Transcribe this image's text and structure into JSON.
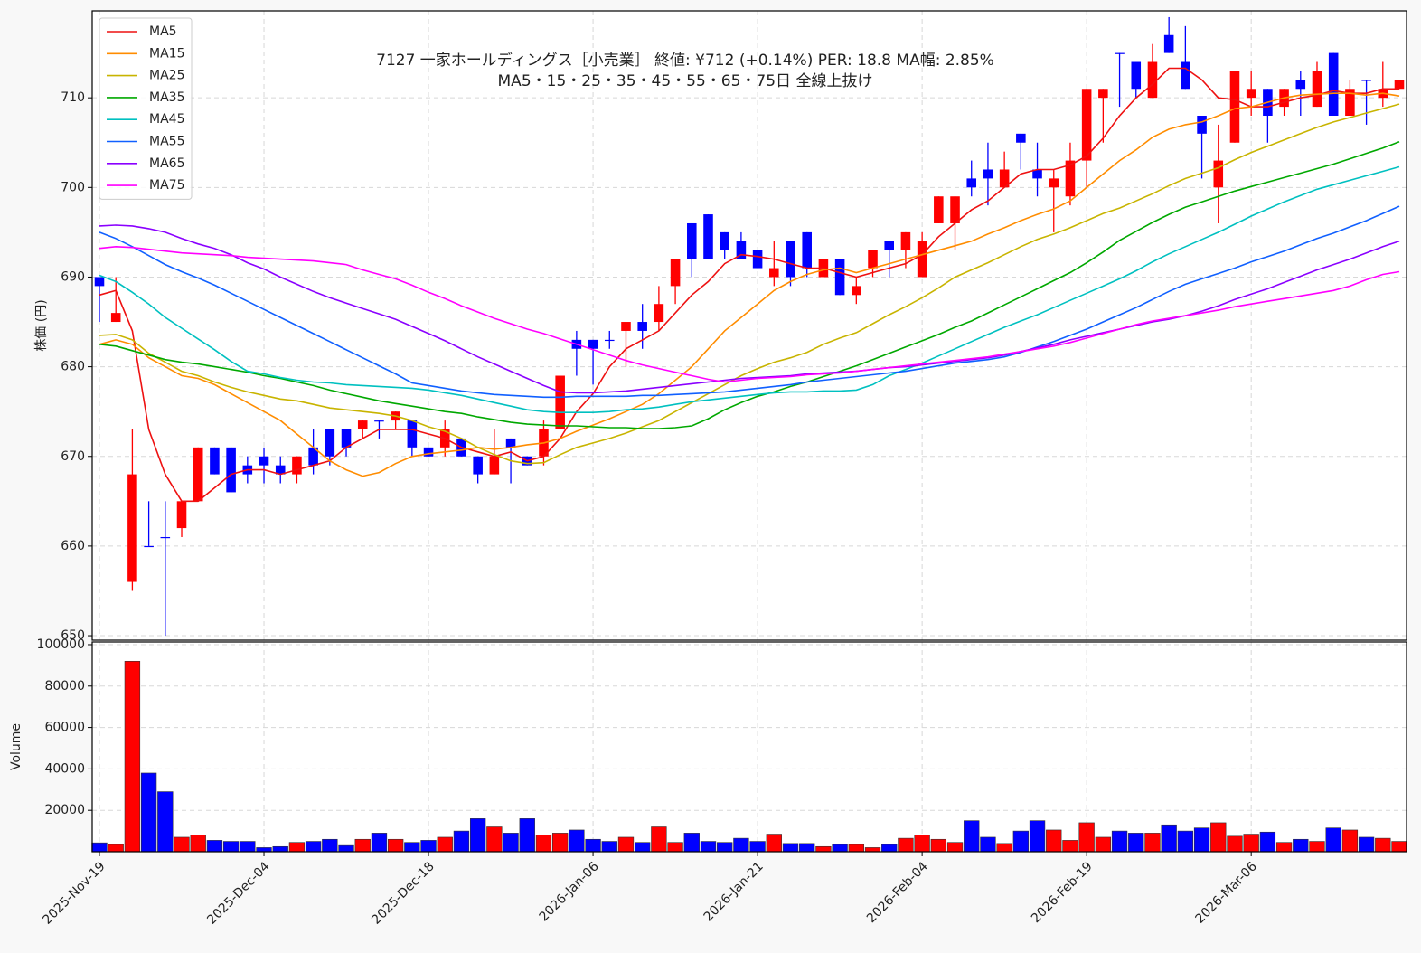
{
  "chart_data": {
    "type": "candlestick",
    "title": "7127  一家ホールディングス［小売業］ 終値: ¥712 (+0.14%)  PER: 18.8  MA幅: 2.85%",
    "subtitle": "MA5・15・25・35・45・55・65・75日 全線上抜け",
    "y_label": "株価 (円)",
    "up_color": "#ff0000",
    "down_color": "#0000ff",
    "grid": true,
    "legend": "upper left",
    "ylim": [
      649.5,
      719.7
    ],
    "yticks": [
      650,
      660,
      670,
      680,
      690,
      700,
      710
    ],
    "categories": [
      "2025-Nov-19",
      null,
      null,
      null,
      null,
      null,
      null,
      null,
      null,
      null,
      "2025-Dec-04",
      null,
      null,
      null,
      null,
      null,
      null,
      null,
      null,
      null,
      "2025-Dec-18",
      null,
      null,
      null,
      null,
      null,
      null,
      null,
      null,
      null,
      "2026-Jan-06",
      null,
      null,
      null,
      null,
      null,
      null,
      null,
      null,
      null,
      "2026-Jan-21",
      null,
      null,
      null,
      null,
      null,
      null,
      null,
      null,
      null,
      "2026-Feb-04",
      null,
      null,
      null,
      null,
      null,
      null,
      null,
      null,
      null,
      "2026-Feb-19",
      null,
      null,
      null,
      null,
      null,
      null,
      null,
      null,
      null,
      "2026-Mar-06",
      null,
      null,
      null,
      null,
      null,
      null,
      null,
      null,
      null
    ],
    "open": [
      690,
      685,
      656,
      660,
      661,
      662,
      665,
      671,
      671,
      669,
      670,
      669,
      668,
      671,
      673,
      673,
      673,
      674,
      674,
      674,
      671,
      671,
      672,
      670,
      668,
      672,
      670,
      670,
      673,
      683,
      683,
      683,
      684,
      685,
      685,
      689,
      696,
      697,
      695,
      694,
      693,
      690,
      694,
      695,
      690,
      692,
      688,
      691,
      694,
      693,
      690,
      696,
      696,
      701,
      702,
      700,
      706,
      702,
      700,
      699,
      703,
      710,
      715,
      714,
      710,
      717,
      714,
      708,
      700,
      705,
      710,
      711,
      709,
      712,
      709,
      715,
      708,
      712,
      710,
      711
    ],
    "high": [
      690,
      690,
      673,
      665,
      665,
      665,
      671,
      671,
      671,
      670,
      671,
      670,
      670,
      673,
      673,
      673,
      674,
      674,
      675,
      674,
      671,
      674,
      672,
      670,
      673,
      672,
      670,
      674,
      679,
      684,
      683,
      684,
      685,
      687,
      689,
      692,
      696,
      697,
      695,
      695,
      693,
      694,
      694,
      695,
      692,
      692,
      690,
      693,
      694,
      695,
      695,
      699,
      699,
      703,
      705,
      704,
      706,
      705,
      702,
      705,
      711,
      711,
      715,
      714,
      716,
      719,
      718,
      708,
      707,
      713,
      713,
      711,
      711,
      713,
      714,
      715,
      712,
      712,
      714,
      712
    ],
    "low": [
      685,
      685,
      655,
      660,
      650,
      661,
      665,
      668,
      666,
      667,
      667,
      667,
      667,
      668,
      669,
      670,
      672,
      672,
      673,
      670,
      670,
      670,
      670,
      667,
      668,
      667,
      669,
      669,
      673,
      679,
      678,
      682,
      680,
      682,
      684,
      687,
      690,
      692,
      692,
      692,
      691,
      689,
      689,
      690,
      690,
      688,
      687,
      690,
      690,
      691,
      690,
      696,
      693,
      699,
      698,
      700,
      702,
      699,
      695,
      698,
      700,
      705,
      709,
      710,
      710,
      715,
      711,
      701,
      696,
      705,
      708,
      705,
      708,
      708,
      709,
      708,
      708,
      707,
      709,
      711
    ],
    "close": [
      689,
      686,
      668,
      660,
      661,
      665,
      671,
      668,
      666,
      668,
      669,
      668,
      670,
      669,
      670,
      671,
      674,
      674,
      675,
      671,
      670,
      673,
      670,
      668,
      670,
      671,
      669,
      673,
      679,
      682,
      682,
      683,
      685,
      684,
      687,
      692,
      692,
      692,
      693,
      692,
      691,
      691,
      690,
      691,
      692,
      688,
      689,
      693,
      693,
      695,
      694,
      699,
      699,
      700,
      701,
      702,
      705,
      701,
      701,
      703,
      711,
      711,
      715,
      711,
      714,
      715,
      711,
      706,
      703,
      713,
      711,
      708,
      711,
      711,
      713,
      708,
      711,
      712,
      711,
      712
    ],
    "series": [
      {
        "name": "MA5",
        "color": "#ee1111",
        "values": [
          688,
          688.5,
          684,
          673,
          668,
          665,
          665,
          666.5,
          668,
          668.5,
          668.5,
          668,
          668.5,
          669,
          669.5,
          671,
          672,
          673,
          673,
          673,
          672.5,
          672,
          671,
          670.5,
          670,
          670.5,
          669.5,
          670,
          672,
          675,
          677,
          680,
          682,
          683,
          684,
          686,
          688,
          689.5,
          691.5,
          692.5,
          692.3,
          692,
          691.5,
          691,
          691,
          690.5,
          690,
          690.5,
          691,
          691.5,
          692.5,
          694.5,
          696,
          697.5,
          698.5,
          700,
          701.5,
          702,
          702,
          702.5,
          703.5,
          705.5,
          708,
          710,
          711.5,
          713.3,
          713.3,
          712,
          710,
          709.8,
          709,
          709,
          709.5,
          710,
          710.3,
          710.8,
          710.5,
          710.5,
          711,
          711
        ]
      },
      {
        "name": "MA15",
        "color": "#ff8c00",
        "values": [
          682.5,
          683,
          682.5,
          681,
          680,
          679,
          678.7,
          678,
          677,
          676,
          675,
          674,
          672.5,
          671,
          669.5,
          668.5,
          667.8,
          668.2,
          669.2,
          670,
          670.3,
          670.5,
          670.7,
          671,
          670.8,
          671,
          671.3,
          671.5,
          672,
          672.8,
          673.5,
          674.2,
          675,
          675.8,
          677,
          678.5,
          680,
          682,
          684,
          685.5,
          687,
          688.5,
          689.5,
          690.3,
          690.8,
          691,
          690.5,
          691,
          691.5,
          692,
          692.5,
          693,
          693.5,
          694,
          694.8,
          695.5,
          696.3,
          697,
          697.6,
          698.5,
          700,
          701.5,
          703,
          704.2,
          705.6,
          706.5,
          707,
          707.3,
          708,
          708.8,
          709,
          709.5,
          710,
          710.3,
          710.4,
          710.5,
          710.5,
          710.3,
          710.5,
          710.2
        ]
      },
      {
        "name": "MA25",
        "color": "#c8b400",
        "values": [
          683.5,
          683.6,
          683,
          681.5,
          680.5,
          679.5,
          679,
          678.3,
          677.7,
          677.2,
          676.8,
          676.4,
          676.2,
          675.8,
          675.4,
          675.2,
          675,
          674.8,
          674.5,
          674,
          673.3,
          672.8,
          672,
          671,
          670.2,
          669.5,
          669.2,
          669.3,
          670.2,
          671,
          671.5,
          672,
          672.6,
          673.3,
          674,
          675,
          676,
          677,
          678,
          679,
          679.8,
          680.5,
          681,
          681.6,
          682.5,
          683.2,
          683.8,
          684.8,
          685.8,
          686.7,
          687.7,
          688.8,
          690,
          690.8,
          691.6,
          692.5,
          693.4,
          694.2,
          694.8,
          695.5,
          696.3,
          697.1,
          697.7,
          698.5,
          699.3,
          700.2,
          701,
          701.6,
          702.2,
          703.1,
          703.9,
          704.6,
          705.3,
          706,
          706.7,
          707.3,
          707.8,
          708.3,
          708.8,
          709.3
        ]
      },
      {
        "name": "MA35",
        "color": "#00a800",
        "values": [
          682.5,
          682.3,
          681.8,
          681.3,
          680.8,
          680.5,
          680.3,
          680,
          679.7,
          679.4,
          679,
          678.7,
          678.3,
          677.9,
          677.4,
          677,
          676.6,
          676.2,
          675.9,
          675.6,
          675.3,
          675,
          674.8,
          674.4,
          674.1,
          673.8,
          673.6,
          673.5,
          673.4,
          673.4,
          673.3,
          673.2,
          673.2,
          673.1,
          673.1,
          673.2,
          673.4,
          674.2,
          675.2,
          676,
          676.7,
          677.2,
          677.8,
          678.3,
          678.9,
          679.5,
          680.1,
          680.8,
          681.5,
          682.2,
          682.9,
          683.6,
          684.4,
          685.1,
          686,
          686.9,
          687.8,
          688.7,
          689.6,
          690.5,
          691.6,
          692.8,
          694.1,
          695.1,
          696.1,
          697,
          697.8,
          698.4,
          699,
          699.6,
          700.1,
          700.6,
          701.1,
          701.6,
          702.1,
          702.6,
          703.2,
          703.8,
          704.4,
          705.1
        ]
      },
      {
        "name": "MA45",
        "color": "#00c0c0",
        "values": [
          690.2,
          689.5,
          688.3,
          687,
          685.5,
          684.3,
          683.1,
          681.9,
          680.6,
          679.5,
          679.2,
          678.8,
          678.5,
          678.3,
          678.2,
          678,
          677.9,
          677.8,
          677.7,
          677.6,
          677.4,
          677.1,
          676.8,
          676.4,
          676,
          675.6,
          675.2,
          675,
          674.9,
          674.9,
          674.9,
          675,
          675.2,
          675.3,
          675.5,
          675.8,
          676.1,
          676.3,
          676.5,
          676.7,
          676.9,
          677.1,
          677.2,
          677.2,
          677.3,
          677.3,
          677.4,
          678,
          679,
          679.7,
          680.4,
          681.2,
          682,
          682.8,
          683.6,
          684.4,
          685.1,
          685.8,
          686.6,
          687.4,
          688.2,
          689,
          689.8,
          690.7,
          691.7,
          692.6,
          693.4,
          694.2,
          695,
          695.9,
          696.8,
          697.6,
          698.4,
          699.1,
          699.8,
          700.3,
          700.8,
          701.3,
          701.8,
          702.3
        ]
      },
      {
        "name": "MA55",
        "color": "#1060ff",
        "values": [
          695,
          694.3,
          693.4,
          692.4,
          691.4,
          690.6,
          689.9,
          689.1,
          688.2,
          687.3,
          686.4,
          685.5,
          684.6,
          683.7,
          682.8,
          681.9,
          681,
          680.1,
          679.2,
          678.2,
          677.9,
          677.6,
          677.3,
          677.1,
          676.9,
          676.8,
          676.7,
          676.6,
          676.6,
          676.7,
          676.7,
          676.7,
          676.7,
          676.8,
          676.8,
          676.9,
          677,
          677.1,
          677.2,
          677.4,
          677.6,
          677.8,
          678,
          678.3,
          678.5,
          678.7,
          678.9,
          679.1,
          679.3,
          679.5,
          679.8,
          680.1,
          680.4,
          680.6,
          680.8,
          681.1,
          681.6,
          682.2,
          682.8,
          683.5,
          684.2,
          685,
          685.8,
          686.6,
          687.5,
          688.4,
          689.2,
          689.8,
          690.4,
          691,
          691.7,
          692.3,
          692.9,
          693.6,
          694.3,
          694.9,
          695.6,
          696.3,
          697.1,
          697.9
        ]
      },
      {
        "name": "MA65",
        "color": "#8a00ff",
        "values": [
          695.7,
          695.8,
          695.7,
          695.4,
          695,
          694.3,
          693.7,
          693.2,
          692.5,
          691.6,
          690.9,
          690,
          689.2,
          688.4,
          687.7,
          687.1,
          686.5,
          685.9,
          685.3,
          684.5,
          683.7,
          682.9,
          682,
          681.1,
          680.3,
          679.5,
          678.7,
          677.9,
          677.2,
          677.1,
          677.1,
          677.2,
          677.3,
          677.5,
          677.7,
          677.9,
          678.1,
          678.3,
          678.5,
          678.7,
          678.8,
          678.9,
          679,
          679.2,
          679.3,
          679.4,
          679.5,
          679.7,
          679.9,
          680,
          680.2,
          680.4,
          680.6,
          680.8,
          681,
          681.3,
          681.7,
          682.1,
          682.5,
          683,
          683.4,
          683.8,
          684.2,
          684.6,
          685,
          685.3,
          685.7,
          686.2,
          686.8,
          687.5,
          688.1,
          688.7,
          689.4,
          690.1,
          690.8,
          691.4,
          692,
          692.7,
          693.4,
          694
        ]
      },
      {
        "name": "MA75",
        "color": "#ff00ff",
        "values": [
          693.2,
          693.4,
          693.3,
          693.1,
          692.9,
          692.7,
          692.6,
          692.5,
          692.4,
          692.2,
          692.1,
          692,
          691.9,
          691.8,
          691.6,
          691.4,
          690.8,
          690.3,
          689.8,
          689.1,
          688.3,
          687.6,
          686.8,
          686.1,
          685.4,
          684.8,
          684.2,
          683.7,
          683.1,
          682.5,
          681.9,
          681.3,
          680.7,
          680.2,
          679.8,
          679.4,
          679,
          678.6,
          678.3,
          678.5,
          678.7,
          678.8,
          678.9,
          679.1,
          679.2,
          679.3,
          679.5,
          679.7,
          679.9,
          680.1,
          680.3,
          680.5,
          680.7,
          680.9,
          681.1,
          681.4,
          681.7,
          682,
          682.3,
          682.7,
          683.2,
          683.7,
          684.2,
          684.7,
          685.1,
          685.4,
          685.7,
          686,
          686.3,
          686.7,
          687,
          687.3,
          687.6,
          687.9,
          688.2,
          688.5,
          689,
          689.7,
          690.3,
          690.6
        ]
      }
    ],
    "volume": {
      "y_label": "Volume",
      "ylim": [
        0,
        101300
      ],
      "yticks": [
        20000,
        40000,
        60000,
        80000,
        100000
      ],
      "values": [
        4300,
        3500,
        92000,
        38000,
        29000,
        7000,
        8000,
        5500,
        5000,
        5000,
        2000,
        2500,
        4500,
        5000,
        6000,
        3000,
        6000,
        9000,
        6000,
        4500,
        5500,
        7000,
        10000,
        16000,
        12000,
        9000,
        16000,
        8000,
        9000,
        10500,
        6000,
        5000,
        7000,
        4500,
        12000,
        4500,
        9000,
        5000,
        4500,
        6500,
        5000,
        8500,
        4000,
        4000,
        2500,
        3500,
        3500,
        2000,
        3500,
        6500,
        8000,
        6000,
        4500,
        15000,
        7000,
        4000,
        10000,
        15000,
        10500,
        5500,
        14000,
        7000,
        10000,
        9000,
        9000,
        13000,
        10000,
        11500,
        14000,
        7500,
        8500,
        9500,
        4500,
        6000,
        5000,
        11500,
        10500,
        7000,
        6500,
        5000
      ]
    }
  }
}
